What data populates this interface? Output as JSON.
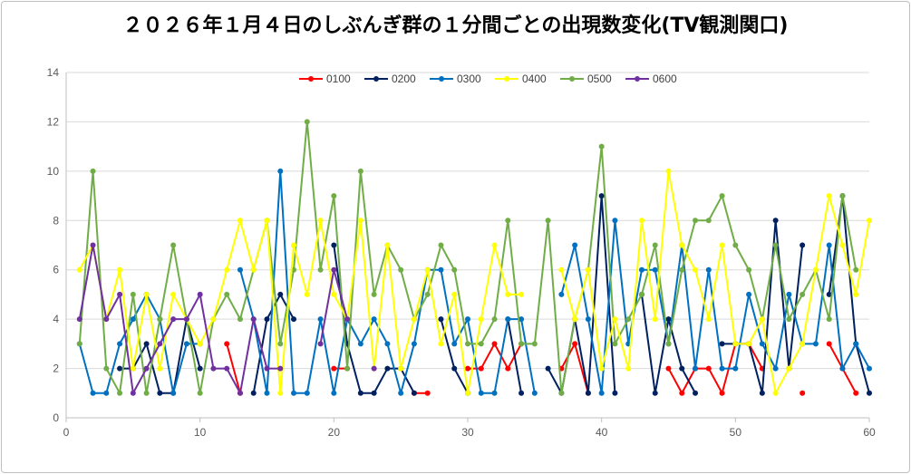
{
  "chart_data": {
    "type": "line",
    "title": "２０２６年１月４日のしぶんぎ群の１分間ごとの出現数変化(TV観測関口)",
    "xlabel": "",
    "ylabel": "",
    "xlim": [
      0,
      60
    ],
    "ylim": [
      0,
      14
    ],
    "xticks": [
      0,
      10,
      20,
      30,
      40,
      50,
      60
    ],
    "yticks": [
      0,
      2,
      4,
      6,
      8,
      10,
      12,
      14
    ],
    "grid": "horizontal",
    "legend_position": "top-center",
    "series": [
      {
        "name": "0100",
        "color": "#ff0000",
        "values": [
          null,
          null,
          null,
          null,
          null,
          null,
          null,
          null,
          null,
          null,
          null,
          3,
          1,
          null,
          null,
          null,
          null,
          null,
          null,
          2,
          2,
          null,
          null,
          null,
          null,
          1,
          1,
          null,
          null,
          2,
          2,
          3,
          2,
          3,
          null,
          null,
          2,
          3,
          1,
          null,
          null,
          null,
          null,
          null,
          2,
          1,
          2,
          2,
          1,
          3,
          3,
          2,
          null,
          null,
          1,
          null,
          3,
          2,
          1,
          null
        ]
      },
      {
        "name": "0200",
        "color": "#002060",
        "values": [
          null,
          null,
          null,
          2,
          2,
          3,
          1,
          1,
          4,
          2,
          null,
          null,
          null,
          1,
          4,
          5,
          4,
          null,
          null,
          7,
          3,
          1,
          1,
          2,
          2,
          1,
          null,
          4,
          2,
          1,
          null,
          null,
          4,
          1,
          null,
          2,
          1,
          4,
          1,
          9,
          1,
          null,
          5,
          1,
          4,
          2,
          1,
          null,
          3,
          3,
          3,
          1,
          8,
          2,
          7,
          null,
          5,
          9,
          3,
          1
        ]
      },
      {
        "name": "0300",
        "color": "#0070c0",
        "values": [
          3,
          1,
          1,
          3,
          4,
          5,
          4,
          1,
          3,
          3,
          null,
          null,
          6,
          4,
          1,
          10,
          1,
          1,
          4,
          1,
          4,
          3,
          4,
          3,
          1,
          3,
          6,
          6,
          3,
          4,
          1,
          1,
          4,
          4,
          1,
          null,
          5,
          7,
          4,
          1,
          8,
          3,
          6,
          6,
          3,
          7,
          2,
          6,
          2,
          2,
          5,
          3,
          2,
          5,
          3,
          3,
          7,
          2,
          3,
          2
        ]
      },
      {
        "name": "0500",
        "color": "#70ad47",
        "values": [
          3,
          10,
          2,
          1,
          5,
          1,
          4,
          7,
          4,
          1,
          4,
          5,
          4,
          6,
          8,
          3,
          6,
          12,
          6,
          9,
          2,
          10,
          5,
          7,
          6,
          4,
          5,
          7,
          6,
          3,
          3,
          4,
          8,
          3,
          3,
          8,
          1,
          4,
          6,
          11,
          3,
          4,
          5,
          7,
          3,
          6,
          8,
          8,
          9,
          7,
          6,
          4,
          7,
          4,
          5,
          6,
          4,
          9,
          6,
          null
        ]
      },
      {
        "name": "0400",
        "color": "#ffff00",
        "values": [
          6,
          7,
          4,
          6,
          2,
          5,
          2,
          5,
          4,
          3,
          4,
          6,
          8,
          6,
          8,
          1,
          7,
          5,
          8,
          5,
          4,
          8,
          2,
          7,
          2,
          4,
          6,
          3,
          5,
          1,
          4,
          7,
          5,
          5,
          null,
          null,
          6,
          4,
          6,
          2,
          4,
          2,
          8,
          4,
          10,
          7,
          6,
          4,
          7,
          3,
          3,
          4,
          1,
          2,
          3,
          6,
          9,
          7,
          5,
          8
        ]
      },
      {
        "name": "0600",
        "color": "#7030a0",
        "values": [
          4,
          7,
          4,
          5,
          1,
          2,
          3,
          4,
          4,
          5,
          2,
          2,
          1,
          4,
          2,
          2,
          null,
          null,
          3,
          6,
          4,
          null,
          2,
          null,
          null,
          null,
          null,
          null,
          null,
          null,
          null,
          null,
          null,
          null,
          null,
          null,
          null,
          null,
          null,
          null,
          null,
          null,
          null,
          null,
          null,
          null,
          null,
          null,
          null,
          null,
          null,
          null,
          null,
          null,
          null,
          null,
          null,
          null,
          null,
          null
        ]
      }
    ],
    "legend_order": [
      "0100",
      "0200",
      "0300",
      "0400",
      "0500",
      "0600"
    ]
  }
}
